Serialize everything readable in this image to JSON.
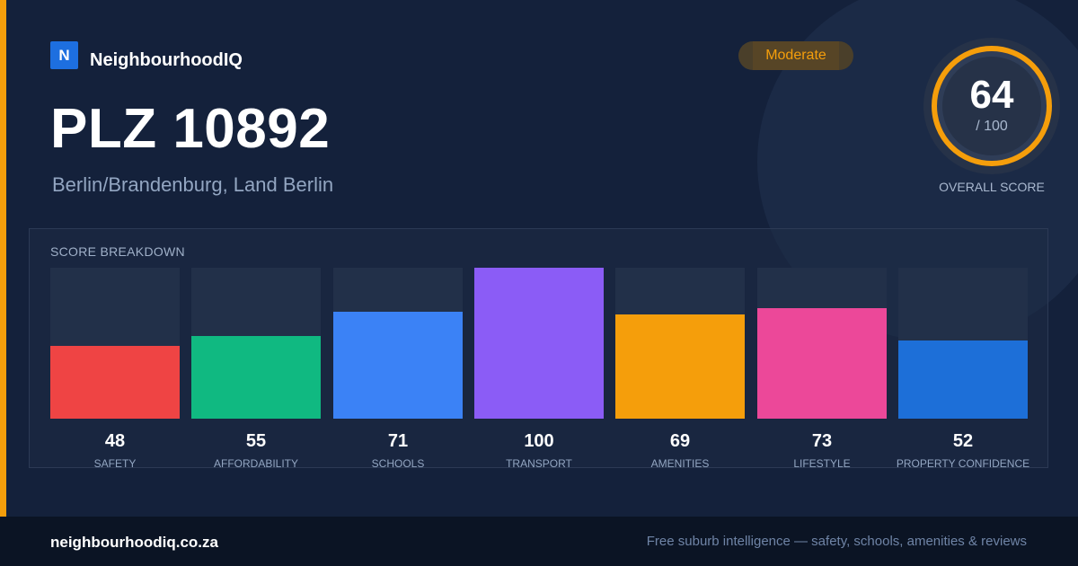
{
  "brand": {
    "logo_letter": "N",
    "name": "NeighbourhoodIQ"
  },
  "header": {
    "title": "PLZ 10892",
    "subtitle": "Berlin/Brandenburg, Land Berlin",
    "rating_badge": "Moderate"
  },
  "overall": {
    "score": 64,
    "score_label": "64",
    "max_label": "/ 100",
    "max": 100,
    "caption": "OVERALL SCORE"
  },
  "colors": {
    "accent": "#f59e0b",
    "background": "#14213b",
    "footer_background": "#0b1424"
  },
  "breakdown": {
    "title": "SCORE BREAKDOWN"
  },
  "chart_data": {
    "type": "bar",
    "categories": [
      "SAFETY",
      "AFFORDABILITY",
      "SCHOOLS",
      "TRANSPORT",
      "AMENITIES",
      "LIFESTYLE",
      "PROPERTY CONFIDENCE"
    ],
    "values": [
      48,
      55,
      71,
      100,
      69,
      73,
      52
    ],
    "value_labels": [
      "48",
      "55",
      "71",
      "100",
      "69",
      "73",
      "52"
    ],
    "colors": [
      "#ef4444",
      "#10b981",
      "#3b82f6",
      "#8b5cf6",
      "#f59e0b",
      "#ec4899",
      "#1d6fd8"
    ],
    "ylim": [
      0,
      100
    ]
  },
  "footer": {
    "domain": "neighbourhoodiq.co.za",
    "tagline": "Free suburb intelligence — safety, schools, amenities & reviews"
  }
}
